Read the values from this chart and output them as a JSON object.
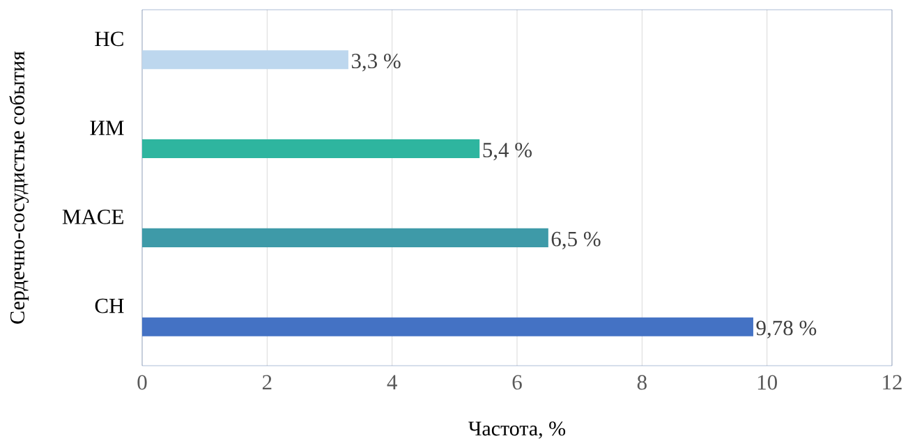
{
  "chart_data": {
    "type": "bar",
    "orientation": "horizontal",
    "xlabel": "Частота, %",
    "ylabel": "Сердечно-сосудистые события",
    "categories": [
      "НС",
      "ИМ",
      "MACE",
      "СН"
    ],
    "values": [
      3.3,
      5.4,
      6.5,
      9.78
    ],
    "colors": [
      "#bdd7ee",
      "#2eb59f",
      "#3e9aa8",
      "#4472c4"
    ],
    "value_labels": [
      "3,3 %",
      "5,4 %",
      "6,5 %",
      "9,78 %"
    ],
    "xlim": [
      0,
      12
    ],
    "xticks": [
      0,
      2,
      4,
      6,
      8,
      10,
      12
    ],
    "grid": "x"
  }
}
